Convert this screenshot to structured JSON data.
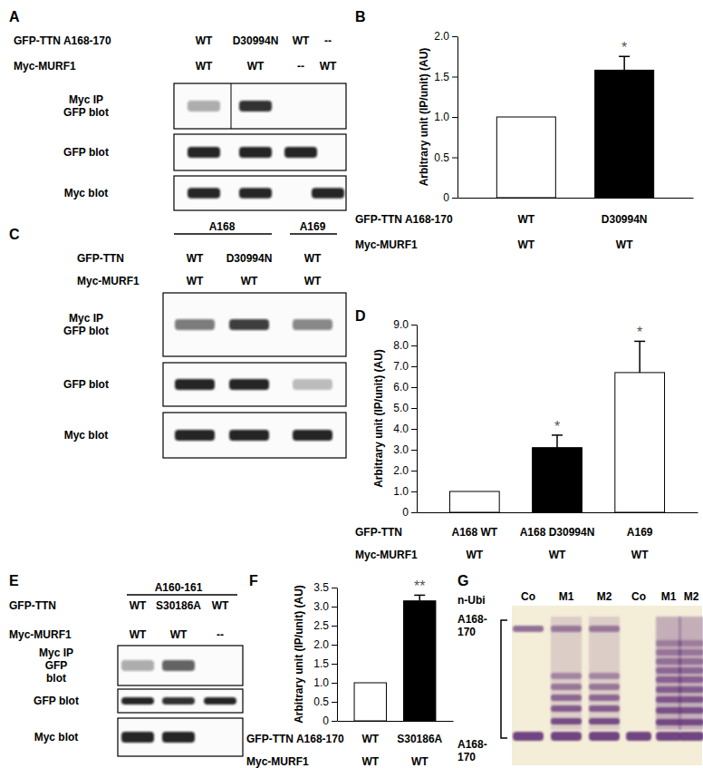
{
  "chart_data": [
    {
      "panel": "B",
      "type": "bar",
      "y_label": "Arbitrary unit (IP/unit) (AU)",
      "categories": [
        "WT",
        "D30994N"
      ],
      "category_title": "GFP-TTN A168-170",
      "second_row": {
        "title": "Myc-MURF1",
        "labels": [
          "WT",
          "WT"
        ]
      },
      "values": [
        1.0,
        1.58
      ],
      "errors": [
        null,
        0.17
      ],
      "annotations": [
        null,
        "*"
      ],
      "colors": [
        "#ffffff",
        "#000000"
      ],
      "ylim": [
        0,
        2
      ],
      "yticks": [
        0,
        0.5,
        {
          "value": 1,
          "label": "1.0"
        },
        1.5,
        {
          "value": 2,
          "label": "2.0"
        }
      ]
    },
    {
      "panel": "D",
      "type": "bar",
      "y_label": "Arbitrary unit (IP/unit) (AU)",
      "categories": [
        "A168 WT",
        "A168 D30994N",
        "A169"
      ],
      "category_title": "GFP-TTN",
      "second_row": {
        "title": "Myc-MURF1",
        "labels": [
          "WT",
          "WT",
          "WT"
        ]
      },
      "values": [
        1.0,
        3.1,
        6.7
      ],
      "errors": [
        null,
        0.6,
        1.5
      ],
      "annotations": [
        null,
        "*",
        "*"
      ],
      "colors": [
        "#ffffff",
        "#000000",
        "#ffffff"
      ],
      "ylim": [
        0,
        9
      ],
      "yticks": [
        0,
        {
          "value": 1,
          "label": "1.0"
        },
        {
          "value": 2,
          "label": "2.0"
        },
        {
          "value": 3,
          "label": "3.0"
        },
        {
          "value": 4,
          "label": "4.0"
        },
        {
          "value": 5,
          "label": "5.0"
        },
        {
          "value": 6,
          "label": "6.0"
        },
        {
          "value": 7,
          "label": "7.0"
        },
        {
          "value": 8,
          "label": "8.0"
        },
        {
          "value": 9,
          "label": "9.0"
        }
      ]
    },
    {
      "panel": "F",
      "type": "bar",
      "y_label": "Arbitrary unit (IP/unit) (AU)",
      "categories": [
        "WT",
        "S30186A"
      ],
      "category_title": "GFP-TTN A168-170",
      "second_row": {
        "title": "Myc-MURF1",
        "labels": [
          "WT",
          "WT"
        ]
      },
      "values": [
        1.0,
        3.15
      ],
      "errors": [
        null,
        0.15
      ],
      "annotations": [
        null,
        "**"
      ],
      "colors": [
        "#ffffff",
        "#000000"
      ],
      "ylim": [
        0,
        3.5
      ],
      "yticks": [
        0,
        0.5,
        {
          "value": 1,
          "label": "1.0"
        },
        1.5,
        {
          "value": 2,
          "label": "2.0"
        },
        2.5,
        {
          "value": 3,
          "label": "3.0"
        },
        3.5
      ]
    }
  ],
  "blots": [
    {
      "panel": "A",
      "rows": [
        {
          "label": "GFP-TTN A168-170",
          "values": [
            "WT",
            "D30994N",
            "WT",
            "--"
          ]
        },
        {
          "label": "Myc-MURF1",
          "values": [
            "WT",
            "WT",
            "--",
            "WT"
          ]
        }
      ],
      "blot_labels": [
        "Myc IP\nGFP blot",
        "GFP blot",
        "Myc blot"
      ]
    },
    {
      "panel": "C",
      "groups": [
        "A168",
        "A169"
      ],
      "rows": [
        {
          "label": "GFP-TTN",
          "values": [
            "WT",
            "D30994N",
            "WT"
          ]
        },
        {
          "label": "Myc-MURF1",
          "values": [
            "WT",
            "WT",
            "WT"
          ]
        }
      ],
      "blot_labels": [
        "Myc IP\nGFP blot",
        "GFP blot",
        "Myc blot"
      ]
    },
    {
      "panel": "E",
      "groups": [
        "A160-161"
      ],
      "rows": [
        {
          "label": "GFP-TTN",
          "values": [
            "WT",
            "S30186A",
            "WT"
          ]
        },
        {
          "label": "Myc-MURF1",
          "values": [
            "WT",
            "WT",
            "--"
          ]
        }
      ],
      "blot_labels": [
        "Myc IP\nGFP\nblot",
        "GFP blot",
        "Myc blot"
      ]
    },
    {
      "panel": "G",
      "lanes": [
        "Co",
        "M1",
        "M2",
        "Co",
        "M1",
        "M2"
      ],
      "left_labels": [
        "n-Ubi",
        "A168-\n170",
        "A168-\n170"
      ]
    }
  ]
}
